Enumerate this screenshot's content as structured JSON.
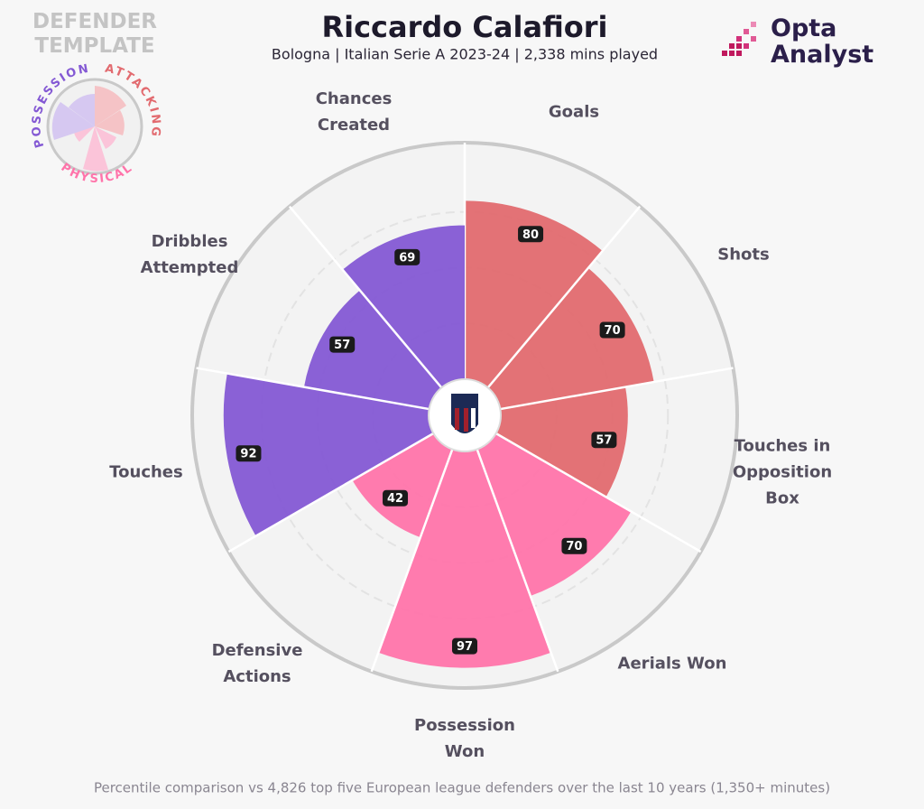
{
  "chart_data": {
    "type": "pizza",
    "title": "Riccardo Calafiori",
    "subtitle": "Bologna | Italian Serie A 2023-24 | 2,338 mins played",
    "template": "DEFENDER TEMPLATE",
    "brand": "Opta Analyst",
    "footnote": "Percentile comparison vs 4,826 top five European league defenders over the last 10 years (1,350+ minutes)",
    "rlim": [
      0,
      100
    ],
    "series": [
      {
        "name": "ATTACKING",
        "color": "#e26a6f",
        "categories": [
          "Goals",
          "Shots",
          "Touches in Opposition Box"
        ],
        "values": [
          80,
          70,
          57
        ]
      },
      {
        "name": "PHYSICAL",
        "color": "#ff74aa",
        "categories": [
          "Aerials Won",
          "Possession Won",
          "Defensive Actions"
        ],
        "values": [
          70,
          97,
          42
        ]
      },
      {
        "name": "POSSESSION",
        "color": "#8459d4",
        "categories": [
          "Touches",
          "Dribbles Attempted",
          "Chances Created"
        ],
        "values": [
          92,
          57,
          69
        ]
      }
    ]
  }
}
